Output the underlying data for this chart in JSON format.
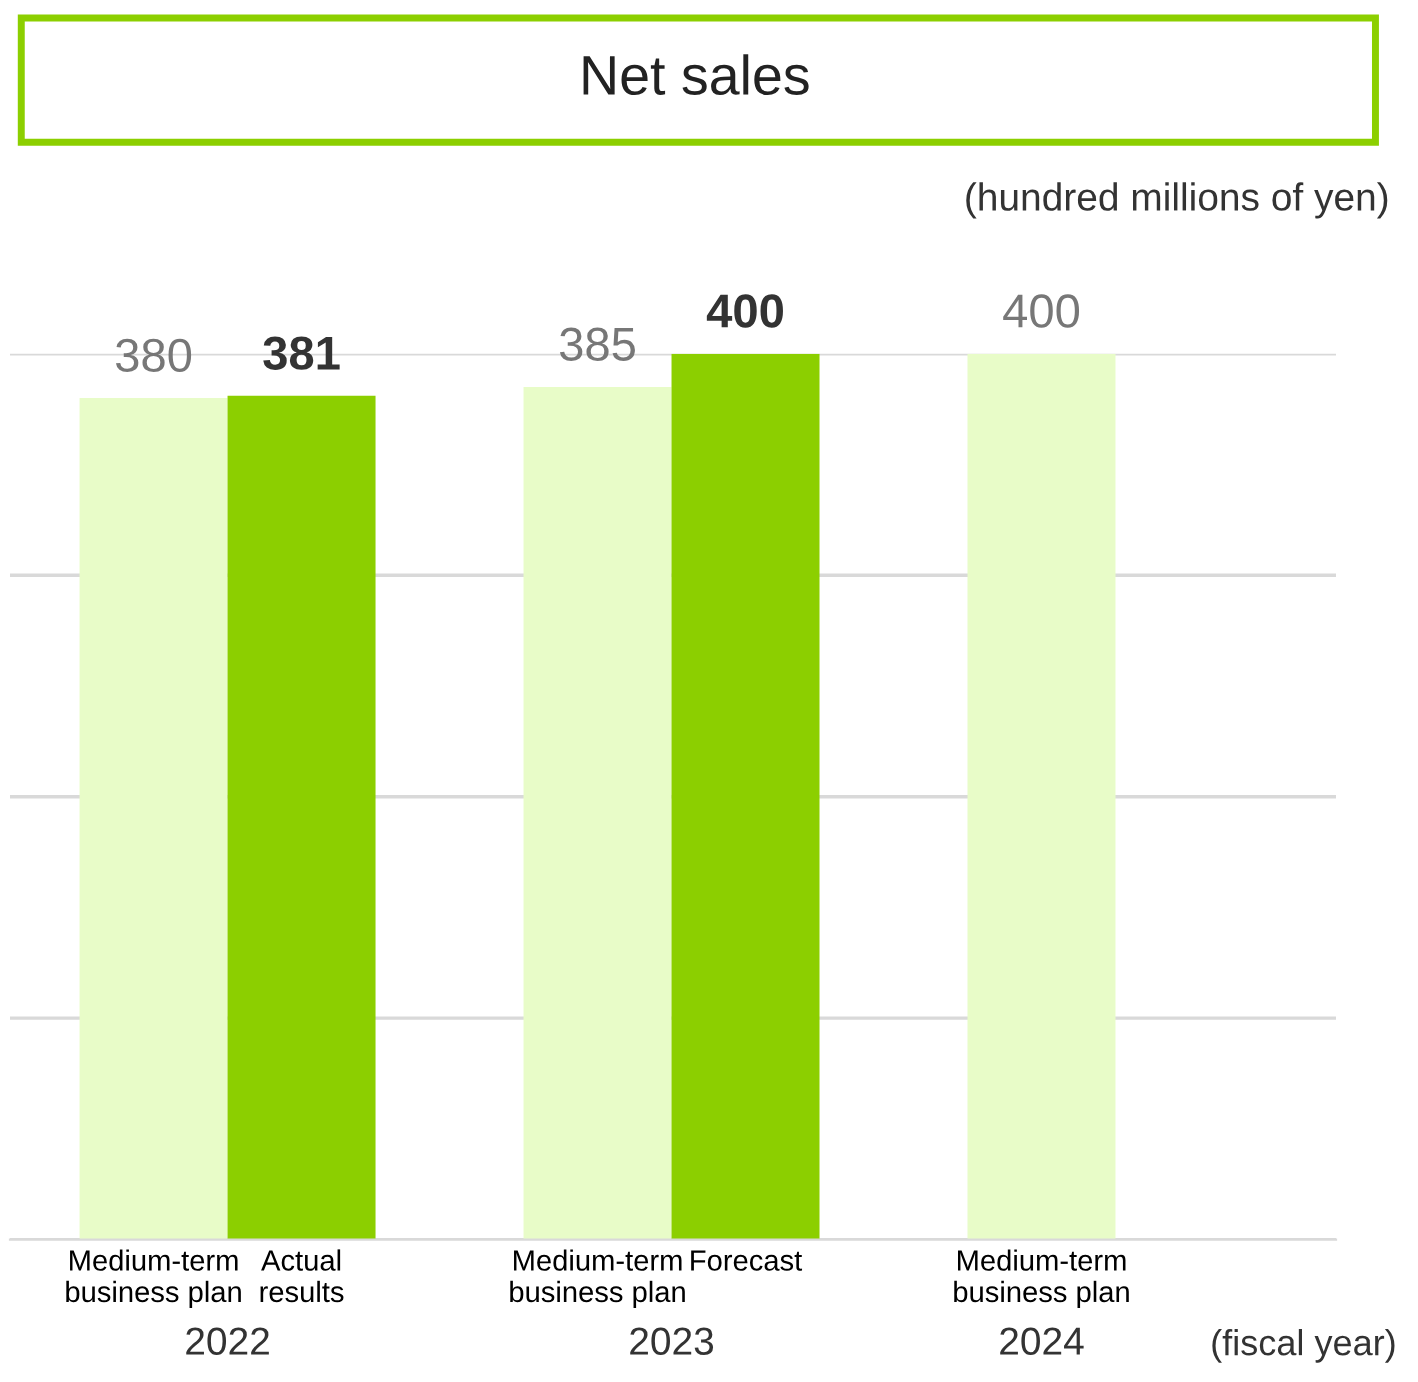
{
  "chart_data": {
    "type": "bar",
    "title": "Net sales",
    "categories": [
      "Medium-term\nbusiness plan",
      "Actual\nresults",
      null,
      "Medium-term\nbusiness plan",
      "Forecast",
      null,
      "Medium-term\nbusiness plan",
      null
    ],
    "values": [
      380,
      381,
      null,
      385,
      400,
      null,
      400,
      null
    ],
    "colors": [
      "#e8fcc8",
      "#8ccf00",
      null,
      "#e8fcc8",
      "#8ccf00",
      null,
      "#e8fcc8",
      null
    ],
    "ylim": [
      0,
      400
    ],
    "yticks": [
      {
        "value": 0,
        "label": null
      },
      {
        "value": 100,
        "label": null
      },
      {
        "value": 200,
        "label": null
      },
      {
        "value": 300,
        "label": null
      },
      {
        "value": 400,
        "label": null
      }
    ],
    "tick_labels": "x",
    "grid": "y",
    "data_labels": true,
    "annotations": [
      "(hundred millions of yen)",
      "2022",
      "2023",
      "2024",
      "(fiscal year)"
    ]
  }
}
